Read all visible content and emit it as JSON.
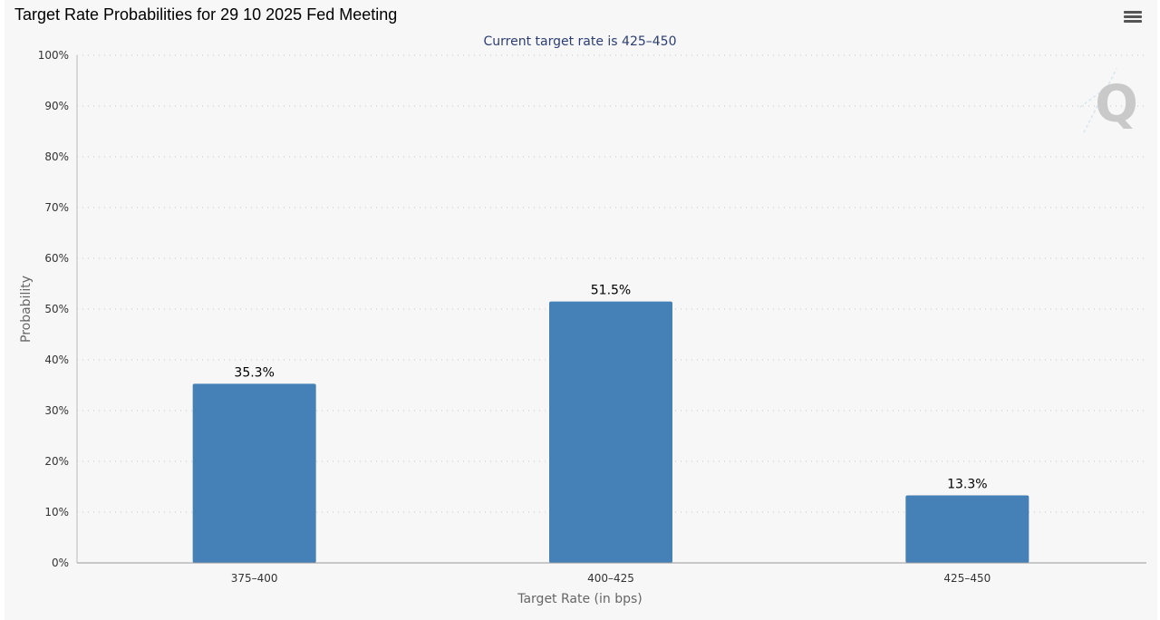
{
  "page": {
    "title": "Target Rate Probabilities for 29 10 2025 Fed Meeting",
    "menu_icon": "hamburger-menu-icon",
    "watermark": "Q"
  },
  "colors": {
    "bar": "#4580b6",
    "background": "#f7f7f7",
    "grid": "#c8c8c8",
    "subtitle": "#2c3e73"
  },
  "chart_data": {
    "type": "bar",
    "title": "Target Rate Probabilities for 29 10 2025 Fed Meeting",
    "subtitle": "Current target rate is 425–450",
    "xlabel": "Target Rate (in bps)",
    "ylabel": "Probability",
    "categories": [
      "375–400",
      "400–425",
      "425–450"
    ],
    "values": [
      35.3,
      51.5,
      13.3
    ],
    "data_labels": [
      "35.3%",
      "51.5%",
      "13.3%"
    ],
    "ylim": [
      0,
      100
    ],
    "yticks": [
      0,
      10,
      20,
      30,
      40,
      50,
      60,
      70,
      80,
      90,
      100
    ],
    "ytick_labels": [
      "0%",
      "10%",
      "20%",
      "30%",
      "40%",
      "50%",
      "60%",
      "70%",
      "80%",
      "90%",
      "100%"
    ],
    "grid": true,
    "grid_style": "dotted",
    "legend": "none"
  }
}
